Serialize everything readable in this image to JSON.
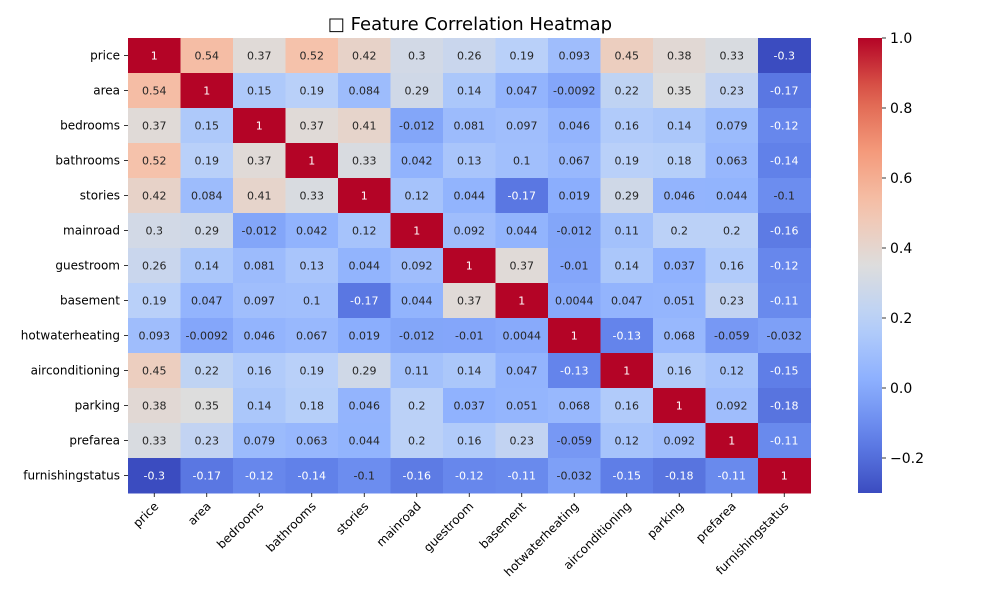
{
  "chart_data": {
    "type": "heatmap",
    "title": "□ Feature Correlation Heatmap",
    "labels": [
      "price",
      "area",
      "bedrooms",
      "bathrooms",
      "stories",
      "mainroad",
      "guestroom",
      "basement",
      "hotwaterheating",
      "airconditioning",
      "parking",
      "prefarea",
      "furnishingstatus"
    ],
    "values": [
      [
        1,
        0.54,
        0.37,
        0.52,
        0.42,
        0.3,
        0.26,
        0.19,
        0.093,
        0.45,
        0.38,
        0.33,
        -0.3
      ],
      [
        0.54,
        1,
        0.15,
        0.19,
        0.084,
        0.29,
        0.14,
        0.047,
        -0.0092,
        0.22,
        0.35,
        0.23,
        -0.17
      ],
      [
        0.37,
        0.15,
        1,
        0.37,
        0.41,
        -0.012,
        0.081,
        0.097,
        0.046,
        0.16,
        0.14,
        0.079,
        -0.12
      ],
      [
        0.52,
        0.19,
        0.37,
        1,
        0.33,
        0.042,
        0.13,
        0.1,
        0.067,
        0.19,
        0.18,
        0.063,
        -0.14
      ],
      [
        0.42,
        0.084,
        0.41,
        0.33,
        1,
        0.12,
        0.044,
        -0.17,
        0.019,
        0.29,
        0.046,
        0.044,
        -0.1
      ],
      [
        0.3,
        0.29,
        -0.012,
        0.042,
        0.12,
        1,
        0.092,
        0.044,
        -0.012,
        0.11,
        0.2,
        0.2,
        -0.16
      ],
      [
        0.26,
        0.14,
        0.081,
        0.13,
        0.044,
        0.092,
        1,
        0.37,
        -0.01,
        0.14,
        0.037,
        0.16,
        -0.12
      ],
      [
        0.19,
        0.047,
        0.097,
        0.1,
        -0.17,
        0.044,
        0.37,
        1,
        0.0044,
        0.047,
        0.051,
        0.23,
        -0.11
      ],
      [
        0.093,
        -0.0092,
        0.046,
        0.067,
        0.019,
        -0.012,
        -0.01,
        0.0044,
        1,
        -0.13,
        0.068,
        -0.059,
        -0.032
      ],
      [
        0.45,
        0.22,
        0.16,
        0.19,
        0.29,
        0.11,
        0.14,
        0.047,
        -0.13,
        1,
        0.16,
        0.12,
        -0.15
      ],
      [
        0.38,
        0.35,
        0.14,
        0.18,
        0.046,
        0.2,
        0.037,
        0.051,
        0.068,
        0.16,
        1,
        0.092,
        -0.18
      ],
      [
        0.33,
        0.23,
        0.079,
        0.063,
        0.044,
        0.2,
        0.16,
        0.23,
        -0.059,
        0.12,
        0.092,
        1,
        -0.11
      ],
      [
        -0.3,
        -0.17,
        -0.12,
        -0.14,
        -0.1,
        -0.16,
        -0.12,
        -0.11,
        -0.032,
        -0.15,
        -0.18,
        -0.11,
        1
      ]
    ],
    "colormap": "coolwarm",
    "color_range": [
      -0.3,
      1.0
    ],
    "colorbar_ticks": [
      "−0.2",
      "0.0",
      "0.2",
      "0.4",
      "0.6",
      "0.8",
      "1.0"
    ],
    "xlabel": "",
    "ylabel": "",
    "grid": false
  }
}
